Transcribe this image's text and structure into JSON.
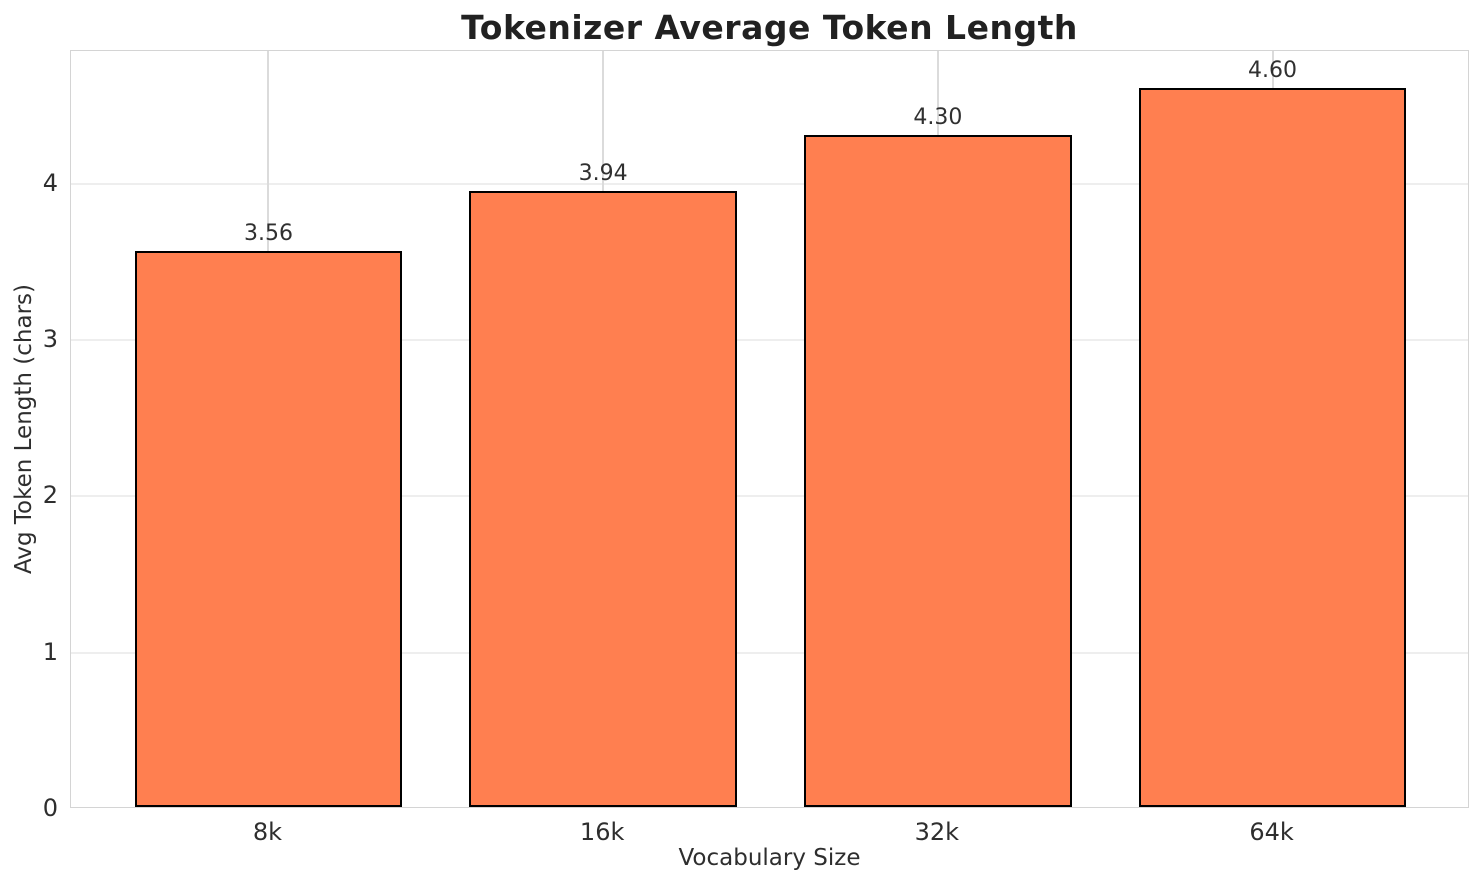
{
  "chart_data": {
    "type": "bar",
    "title": "Tokenizer Average Token Length",
    "xlabel": "Vocabulary Size",
    "ylabel": "Avg Token Length (chars)",
    "categories": [
      "8k",
      "16k",
      "32k",
      "64k"
    ],
    "values": [
      3.56,
      3.94,
      4.3,
      4.6
    ],
    "value_labels": [
      "3.56",
      "3.94",
      "4.30",
      "4.60"
    ],
    "yticks": [
      0,
      1,
      2,
      3,
      4
    ],
    "ylim": [
      0,
      4.85
    ],
    "xlim": [
      -0.59,
      3.59
    ],
    "bar_width": 0.8,
    "grid": true,
    "legend": false,
    "colors": {
      "bar_fill": "#FF7F50",
      "bar_edge": "#000000",
      "grid_horizontal": "#eeeeee",
      "grid_vertical": "#dbdbdb",
      "spine": "#d4d4d4",
      "text": "#2e2e2e",
      "title_text": "#212121",
      "background": "#ffffff"
    }
  }
}
